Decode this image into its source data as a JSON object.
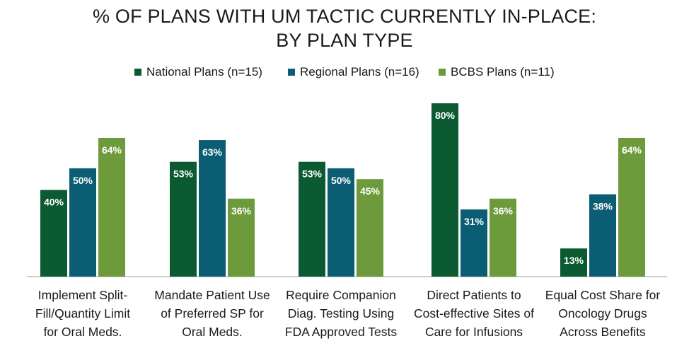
{
  "title_lines": [
    "% OF PLANS WITH UM TACTIC CURRENTLY IN-PLACE:",
    "BY PLAN TYPE"
  ],
  "colors": {
    "national": "#0c5a32",
    "regional": "#0b5d73",
    "bcbs": "#6d9b3b",
    "axis": "#bfbfbf"
  },
  "chart_data": {
    "type": "bar",
    "title": "% OF PLANS WITH UM TACTIC CURRENTLY IN-PLACE: BY PLAN TYPE",
    "categories": [
      [
        "Implement Split-",
        "Fill/Quantity Limit",
        "for Oral Meds."
      ],
      [
        "Mandate Patient Use",
        "of Preferred SP for",
        "Oral Meds."
      ],
      [
        "Require Companion",
        "Diag. Testing Using",
        "FDA Approved Tests"
      ],
      [
        "Direct Patients to",
        "Cost-effective Sites of",
        "Care for Infusions"
      ],
      [
        "Equal Cost Share for",
        "Oncology Drugs",
        "Across Benefits"
      ]
    ],
    "series": [
      {
        "name": "National Plans (n=15)",
        "values": [
          40,
          53,
          53,
          80,
          13
        ],
        "labels": [
          "40%",
          "53%",
          "53%",
          "80%",
          "13%"
        ]
      },
      {
        "name": "Regional Plans (n=16)",
        "values": [
          50,
          63,
          50,
          31,
          38
        ],
        "labels": [
          "50%",
          "63%",
          "50%",
          "31%",
          "38%"
        ]
      },
      {
        "name": "BCBS Plans (n=11)",
        "values": [
          64,
          36,
          45,
          36,
          64
        ],
        "labels": [
          "64%",
          "36%",
          "45%",
          "36%",
          "64%"
        ]
      }
    ],
    "ylim": [
      0,
      100
    ],
    "legend_position": "top-center",
    "grid": false
  }
}
